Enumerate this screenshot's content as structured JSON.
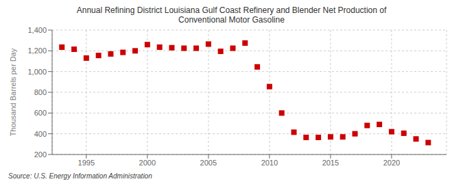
{
  "chart_data": {
    "type": "scatter",
    "title": "Annual Refining District Louisiana Gulf Coast Refinery and Blender Net Production of\nConventional Motor Gasoline",
    "y_label": "Thousand Barrels per Day",
    "annotations": [
      "Source: U.S. Energy Information Administration"
    ],
    "x": [
      1993,
      1994,
      1995,
      1996,
      1997,
      1998,
      1999,
      2000,
      2001,
      2002,
      2003,
      2004,
      2005,
      2006,
      2007,
      2008,
      2009,
      2010,
      2011,
      2012,
      2013,
      2014,
      2015,
      2016,
      2017,
      2018,
      2019,
      2020,
      2021,
      2022,
      2023
    ],
    "values": [
      1235,
      1215,
      1130,
      1155,
      1170,
      1185,
      1200,
      1260,
      1235,
      1230,
      1225,
      1225,
      1265,
      1195,
      1225,
      1275,
      1045,
      855,
      600,
      415,
      365,
      365,
      370,
      370,
      400,
      480,
      490,
      420,
      405,
      350,
      315
    ],
    "color": "#cc0000",
    "marker": "square",
    "xlim": [
      1992.2,
      2024.5
    ],
    "xticks": [
      1995,
      2000,
      2005,
      2010,
      2015,
      2020
    ],
    "ylim": [
      200,
      1400
    ],
    "yticks": [
      200,
      400,
      600,
      800,
      {
        "value": 1000,
        "label": "1,000"
      },
      {
        "value": 1200,
        "label": "1,200"
      },
      {
        "value": 1400,
        "label": "1,400"
      }
    ],
    "grid": true
  }
}
